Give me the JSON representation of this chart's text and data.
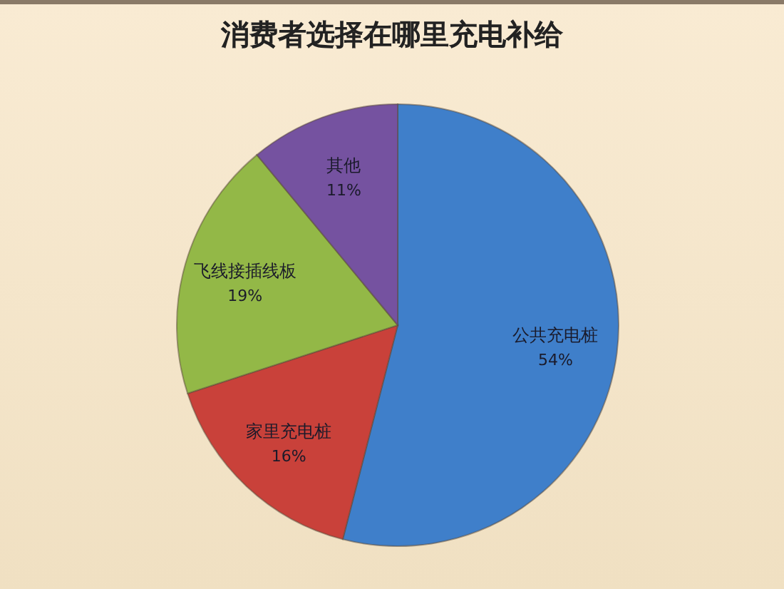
{
  "chart_data": {
    "type": "pie",
    "title": "消费者选择在哪里充电补给",
    "categories": [
      "公共充电桩",
      "家里充电桩",
      "飞线接插线板",
      "其他"
    ],
    "values": [
      54,
      16,
      19,
      11
    ],
    "colors": [
      "#3f7fca",
      "#c9413a",
      "#93b847",
      "#7552a0"
    ],
    "value_labels": [
      "54%",
      "16%",
      "19%",
      "11%"
    ]
  }
}
